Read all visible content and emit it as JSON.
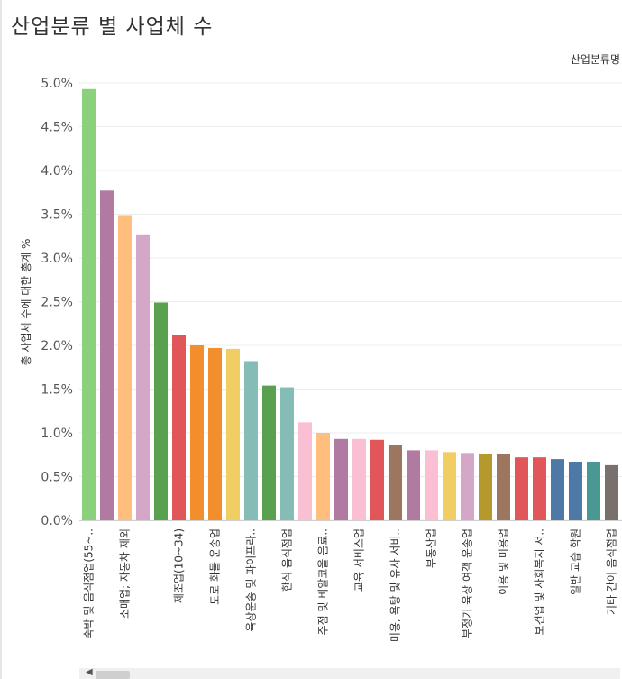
{
  "title": "산업분류 별 사업체 수",
  "legend_title": "산업분류명",
  "chart_data": {
    "type": "bar",
    "ylabel": "총 사업체 수에 대한 총계 %",
    "ylim": [
      0,
      5.0
    ],
    "yticks": [
      "0.0%",
      "0.5%",
      "1.0%",
      "1.5%",
      "2.0%",
      "2.5%",
      "3.0%",
      "3.5%",
      "4.0%",
      "4.5%",
      "5.0%"
    ],
    "grid": true,
    "categories": [
      "숙박 및 음식점업(55~..",
      "",
      "소매업; 자동차 제외",
      "",
      "",
      "제조업(10~34)",
      "",
      "도로 화물 운송업",
      "",
      "육상운송 및 파이프라..",
      "",
      "한식 음식점업",
      "",
      "주점 및 비알코올 음료..",
      "",
      "교육 서비스업",
      "",
      "미용, 욕탕 및 유사 서비..",
      "",
      "부동산업",
      "",
      "부정기 육상 여객 운송업",
      "",
      "이용 및 미용업",
      "",
      "보건업 및 사회복지 서..",
      "",
      "일반 교습 학원",
      "",
      "기타 간이 음식점업"
    ],
    "values": [
      4.93,
      3.77,
      3.49,
      3.26,
      2.49,
      2.12,
      2.0,
      1.97,
      1.96,
      1.82,
      1.54,
      1.52,
      1.12,
      1.0,
      0.93,
      0.93,
      0.92,
      0.86,
      0.8,
      0.8,
      0.78,
      0.77,
      0.76,
      0.76,
      0.72,
      0.72,
      0.7,
      0.67,
      0.67,
      0.63
    ],
    "colors": [
      "#8bd17c",
      "#b07aa1",
      "#ffbe7d",
      "#d4a6c8",
      "#59a14f",
      "#e15759",
      "#f28e2b",
      "#f28e2b",
      "#f1ce63",
      "#86bcb6",
      "#59a14f",
      "#86bcb6",
      "#fabfd2",
      "#ffbe7d",
      "#b07aa1",
      "#fabfd2",
      "#e15759",
      "#9d7660",
      "#b07aa1",
      "#fabfd2",
      "#f1ce63",
      "#d4a6c8",
      "#b6992d",
      "#9d7660",
      "#e15759",
      "#e15759",
      "#4e79a7",
      "#4e79a7",
      "#499894",
      "#79706e"
    ]
  }
}
